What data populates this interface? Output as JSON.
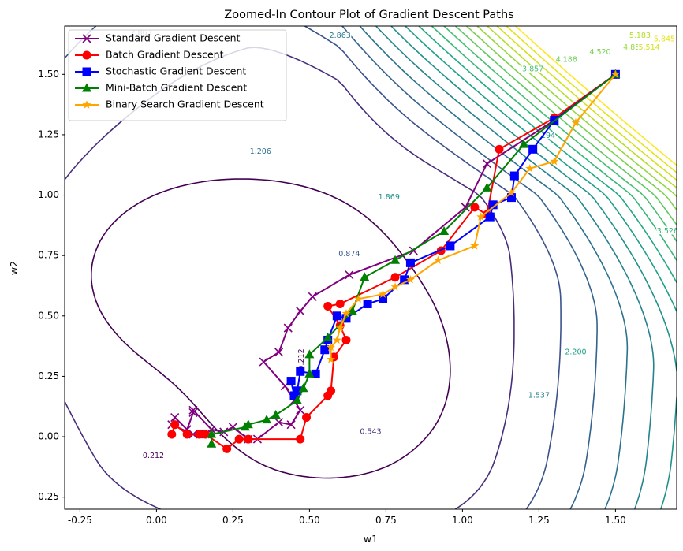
{
  "chart_data": {
    "type": "line",
    "title": "Zoomed-In Contour Plot of Gradient Descent Paths",
    "xlabel": "w1",
    "ylabel": "w2",
    "xlim": [
      -0.3,
      1.7
    ],
    "ylim": [
      -0.3,
      1.7
    ],
    "xticks": [
      "-0.25",
      "0.00",
      "0.25",
      "0.50",
      "0.75",
      "1.00",
      "1.25",
      "1.50"
    ],
    "yticks": [
      "-0.25",
      "0.00",
      "0.25",
      "0.50",
      "0.75",
      "1.00",
      "1.25",
      "1.50"
    ],
    "grid": false,
    "legend_position": "top-left",
    "colors": {
      "standard": "#800080",
      "batch": "#ff0000",
      "stochastic": "#0000ff",
      "minibatch": "#008000",
      "binary": "#ffa500"
    },
    "contour_labels": [
      {
        "text": "0.212",
        "x": -0.01,
        "y": -0.08,
        "color": "#440154"
      },
      {
        "text": "0.212",
        "x": 0.475,
        "y": 0.32,
        "color": "#440154",
        "rotate": -90
      },
      {
        "text": "0.543",
        "x": 0.7,
        "y": 0.02,
        "color": "#46327e"
      },
      {
        "text": "0.874",
        "x": 0.63,
        "y": 0.755,
        "color": "#365c8d"
      },
      {
        "text": "1.206",
        "x": 0.34,
        "y": 1.18,
        "color": "#2d6f8e"
      },
      {
        "text": "1.537",
        "x": 1.25,
        "y": 0.17,
        "color": "#277f8e"
      },
      {
        "text": "1.869",
        "x": 0.76,
        "y": 0.99,
        "color": "#21918c"
      },
      {
        "text": "2.200",
        "x": 1.37,
        "y": 0.35,
        "color": "#1fa187"
      },
      {
        "text": "2.863",
        "x": -0.05,
        "y": 1.67,
        "color": "#2a788e"
      },
      {
        "text": "2.863",
        "x": 0.6,
        "y": 1.66,
        "color": "#2a788e"
      },
      {
        "text": "3.526",
        "x": 1.67,
        "y": 0.85,
        "color": "#35b779"
      },
      {
        "text": "3.857",
        "x": 1.23,
        "y": 1.52,
        "color": "#4ac16d"
      },
      {
        "text": "4.188",
        "x": 1.34,
        "y": 1.56,
        "color": "#6ece58"
      },
      {
        "text": "4.520",
        "x": 1.45,
        "y": 1.59,
        "color": "#7ad151"
      },
      {
        "text": "4.851",
        "x": 1.56,
        "y": 1.61,
        "color": "#95d840"
      },
      {
        "text": "5.183",
        "x": 1.58,
        "y": 1.66,
        "color": "#b5de2b"
      },
      {
        "text": "5.514",
        "x": 1.61,
        "y": 1.61,
        "color": "#d2e21b"
      },
      {
        "text": "5.845",
        "x": 1.66,
        "y": 1.645,
        "color": "#e5e419"
      },
      {
        "text": "194",
        "x": 1.28,
        "y": 1.245,
        "color": "#21918c"
      }
    ],
    "series": [
      {
        "name": "Standard Gradient Descent",
        "color_key": "standard",
        "marker": "x",
        "x": [
          1.5,
          1.3,
          1.08,
          1.01,
          0.84,
          0.63,
          0.51,
          0.47,
          0.43,
          0.4,
          0.35,
          0.42,
          0.45,
          0.47,
          0.44,
          0.4,
          0.33,
          0.3,
          0.25,
          0.22,
          0.18,
          0.12,
          0.12,
          0.1,
          0.06,
          0.05,
          0.12,
          0.16
        ],
        "y": [
          1.5,
          1.31,
          1.13,
          0.95,
          0.77,
          0.67,
          0.58,
          0.52,
          0.45,
          0.35,
          0.31,
          0.21,
          0.15,
          0.11,
          0.05,
          0.06,
          -0.01,
          -0.01,
          0.04,
          0.02,
          0.03,
          0.11,
          0.1,
          0.03,
          0.08,
          0.05,
          0.01,
          0.01
        ]
      },
      {
        "name": "Batch Gradient Descent",
        "color_key": "batch",
        "marker": "o",
        "x": [
          1.5,
          1.3,
          1.12,
          1.08,
          1.04,
          0.93,
          0.78,
          0.6,
          0.56,
          0.6,
          0.62,
          0.58,
          0.57,
          0.56,
          0.49,
          0.47,
          0.3,
          0.27,
          0.23,
          0.16,
          0.14,
          0.1,
          0.06,
          0.05
        ],
        "y": [
          1.5,
          1.32,
          1.19,
          0.92,
          0.95,
          0.77,
          0.66,
          0.55,
          0.54,
          0.46,
          0.4,
          0.33,
          0.19,
          0.17,
          0.08,
          -0.01,
          -0.01,
          -0.01,
          -0.05,
          0.01,
          0.01,
          0.01,
          0.05,
          0.01
        ]
      },
      {
        "name": "Stochastic Gradient Descent",
        "color_key": "stochastic",
        "marker": "s",
        "x": [
          1.5,
          1.3,
          1.23,
          1.17,
          1.16,
          1.1,
          1.09,
          0.96,
          0.83,
          0.81,
          0.74,
          0.69,
          0.62,
          0.59,
          0.56,
          0.55,
          0.52,
          0.47,
          0.46,
          0.45,
          0.44
        ],
        "y": [
          1.5,
          1.31,
          1.19,
          1.08,
          0.99,
          0.96,
          0.91,
          0.79,
          0.72,
          0.65,
          0.57,
          0.55,
          0.49,
          0.5,
          0.4,
          0.36,
          0.26,
          0.27,
          0.19,
          0.17,
          0.23
        ]
      },
      {
        "name": "Mini-Batch Gradient Descent",
        "color_key": "minibatch",
        "marker": "^",
        "x": [
          1.5,
          1.2,
          1.08,
          0.94,
          0.78,
          0.68,
          0.64,
          0.56,
          0.5,
          0.5,
          0.48,
          0.46,
          0.39,
          0.36,
          0.3,
          0.29,
          0.18,
          0.18
        ],
        "y": [
          1.5,
          1.21,
          1.03,
          0.85,
          0.73,
          0.66,
          0.52,
          0.41,
          0.34,
          0.26,
          0.2,
          0.15,
          0.09,
          0.07,
          0.05,
          0.04,
          0.01,
          -0.03
        ]
      },
      {
        "name": "Binary Search Gradient Descent",
        "color_key": "binary",
        "marker": "*",
        "x": [
          1.5,
          1.37,
          1.3,
          1.22,
          1.16,
          1.06,
          1.04,
          0.92,
          0.83,
          0.78,
          0.74,
          0.66,
          0.62,
          0.6,
          0.59,
          0.57,
          0.57
        ],
        "y": [
          1.5,
          1.3,
          1.14,
          1.11,
          1.01,
          0.91,
          0.79,
          0.73,
          0.65,
          0.62,
          0.59,
          0.57,
          0.51,
          0.45,
          0.4,
          0.37,
          0.32
        ]
      }
    ]
  }
}
